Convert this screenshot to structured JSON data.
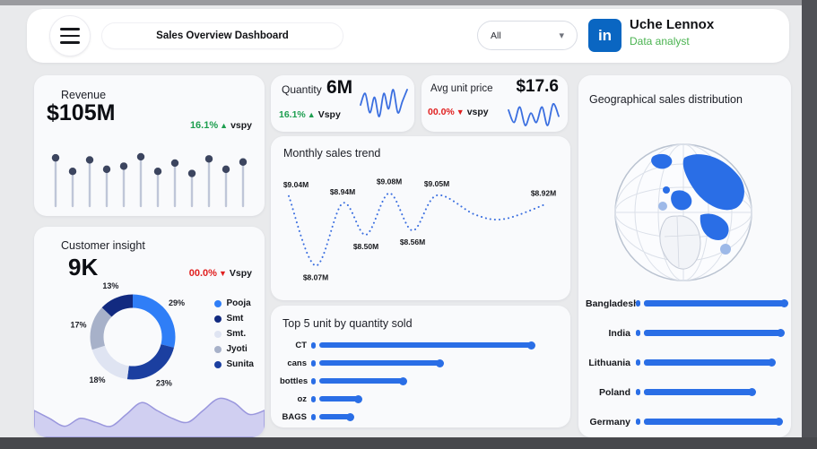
{
  "colors": {
    "accent": "#2a6ee6",
    "green": "#1d9e4f",
    "green2": "#4ab350",
    "red": "#e01f1f",
    "navy_dot": "#3c455f",
    "trend_line": "#3b6fe0",
    "area_fill": "#c6c4ee",
    "area_line": "#9a97dd"
  },
  "icons": {
    "chevron_down": "▾",
    "linkedin_glyph": "in"
  },
  "header": {
    "title": "Sales Overview Dashboard",
    "filter_value": "All",
    "user_name": "Uche Lennox",
    "user_role": "Data analyst"
  },
  "revenue_card": {
    "title": "Revenue",
    "value": "$105M",
    "delta": "16.1%",
    "delta_arrow": "▲",
    "delta_label": "vspy"
  },
  "quantity_card": {
    "title": "Quantity",
    "value": "6M",
    "delta": "16.1%",
    "delta_arrow": "▲",
    "delta_label": "Vspy"
  },
  "avg_price_card": {
    "title": "Avg unit price",
    "value": "$17.6",
    "delta": "00.0%",
    "delta_arrow": "▼",
    "delta_label": "vspy"
  },
  "customer_card": {
    "title": "Customer insight",
    "value": "9K",
    "delta": "00.0%",
    "delta_arrow": "▼",
    "delta_label": "Vspy",
    "legend": [
      {
        "label": "Pooja",
        "color": "#2f7ef7"
      },
      {
        "label": "Smt",
        "color": "#122a80"
      },
      {
        "label": "Smt.",
        "color": "#dfe4f2"
      },
      {
        "label": "Jyoti",
        "color": "#a7b1c9"
      },
      {
        "label": "Sunita",
        "color": "#1b3fa0"
      }
    ]
  },
  "monthly_card": {
    "title": "Monthly sales trend"
  },
  "top5_card": {
    "title": "Top 5 unit by quantity sold"
  },
  "geo_card": {
    "title": "Geographical sales distribution"
  },
  "chart_data": [
    {
      "id": "revenue_lollipop",
      "type": "bar",
      "title": "Revenue",
      "values": [
        86,
        60,
        82,
        64,
        70,
        88,
        60,
        76,
        56,
        84,
        64,
        78
      ],
      "ylim": [
        0,
        100
      ]
    },
    {
      "id": "quantity_sparkline",
      "type": "line",
      "values": [
        5,
        8,
        3,
        7,
        2,
        8,
        4,
        9,
        3,
        6,
        9
      ]
    },
    {
      "id": "avg_price_sparkline",
      "type": "line",
      "values": [
        7,
        3,
        8,
        2,
        6,
        3,
        8,
        2,
        9,
        5
      ]
    },
    {
      "id": "monthly_trend",
      "type": "line",
      "title": "Monthly sales trend",
      "ylim": [
        8.0,
        9.2
      ],
      "values": [
        9.04,
        8.07,
        8.94,
        8.5,
        9.08,
        8.56,
        9.05,
        8.78,
        8.72,
        8.92
      ],
      "point_labels": [
        "$9.04M",
        "$8.07M",
        "$8.94M",
        "$8.50M",
        "$9.08M",
        "$8.56M",
        "$9.05M",
        null,
        null,
        "$8.92M"
      ],
      "label_side": [
        "above",
        "below",
        "above",
        "below",
        "above",
        "below",
        "above",
        null,
        null,
        "above"
      ]
    },
    {
      "id": "top5_units",
      "type": "bar",
      "title": "Top 5 unit by quantity sold",
      "categories": [
        "CT",
        "cans",
        "bottles",
        "oz",
        "BAGS"
      ],
      "values": [
        100,
        57,
        40,
        19,
        15
      ]
    },
    {
      "id": "geo_sales",
      "type": "bar",
      "title": "Geographical sales distribution",
      "categories": [
        "Bangladesh",
        "India",
        "Lithuania",
        "Poland",
        "Germany"
      ],
      "values": [
        100,
        96,
        90,
        76,
        95
      ]
    },
    {
      "id": "customer_donut",
      "type": "pie",
      "title": "Customer insight",
      "segments": [
        {
          "name": "Pooja",
          "pct": 29,
          "color": "#2f7ef7"
        },
        {
          "name": "Sunita",
          "pct": 23,
          "color": "#1b3fa0"
        },
        {
          "name": "Smt.",
          "pct": 18,
          "color": "#dfe4f2"
        },
        {
          "name": "Jyoti",
          "pct": 17,
          "color": "#a7b1c9"
        },
        {
          "name": "Smt",
          "pct": 13,
          "color": "#122a80"
        }
      ]
    },
    {
      "id": "customer_area",
      "type": "area",
      "values": [
        5,
        3,
        1,
        3,
        2,
        1,
        4,
        7,
        5,
        3,
        2,
        5,
        8,
        7,
        4,
        5
      ]
    }
  ]
}
